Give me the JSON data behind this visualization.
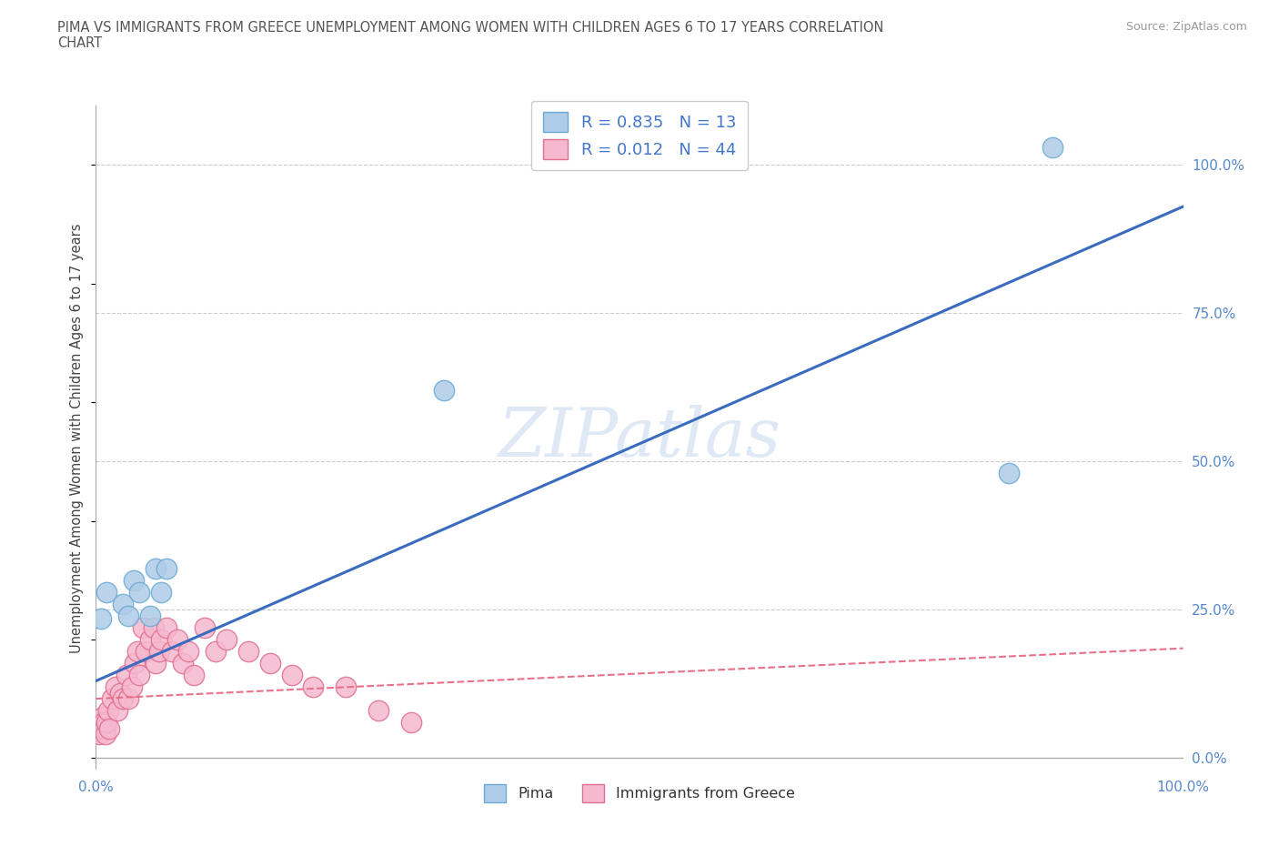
{
  "title_line1": "PIMA VS IMMIGRANTS FROM GREECE UNEMPLOYMENT AMONG WOMEN WITH CHILDREN AGES 6 TO 17 YEARS CORRELATION",
  "title_line2": "CHART",
  "source": "Source: ZipAtlas.com",
  "ylabel": "Unemployment Among Women with Children Ages 6 to 17 years",
  "watermark": "ZIPatlas",
  "pima_color": "#aecce8",
  "pima_edge_color": "#6aaad4",
  "greece_color": "#f5b8cf",
  "greece_edge_color": "#e07090",
  "pima_line_color": "#3a6bbf",
  "greece_line_color": "#e8708a",
  "pima_R": 0.835,
  "pima_N": 13,
  "greece_R": 0.012,
  "greece_N": 44,
  "legend_pima_label": "Pima",
  "legend_greece_label": "Immigrants from Greece",
  "pima_line_x0": 0.0,
  "pima_line_y0": 0.13,
  "pima_line_x1": 1.0,
  "pima_line_y1": 0.93,
  "greece_line_x0": 0.0,
  "greece_line_y0": 0.1,
  "greece_line_x1": 1.0,
  "greece_line_y1": 0.185,
  "pima_points_x": [
    0.005,
    0.01,
    0.025,
    0.03,
    0.035,
    0.04,
    0.05,
    0.055,
    0.06,
    0.065,
    0.32,
    0.84,
    0.88
  ],
  "pima_points_y": [
    0.235,
    0.28,
    0.26,
    0.24,
    0.3,
    0.28,
    0.24,
    0.32,
    0.28,
    0.32,
    0.62,
    0.48,
    1.03
  ],
  "greece_points_x": [
    0.003,
    0.004,
    0.005,
    0.006,
    0.007,
    0.008,
    0.009,
    0.01,
    0.011,
    0.012,
    0.015,
    0.018,
    0.02,
    0.022,
    0.025,
    0.028,
    0.03,
    0.033,
    0.036,
    0.038,
    0.04,
    0.043,
    0.046,
    0.05,
    0.053,
    0.055,
    0.058,
    0.06,
    0.065,
    0.07,
    0.075,
    0.08,
    0.085,
    0.09,
    0.1,
    0.11,
    0.12,
    0.14,
    0.16,
    0.18,
    0.2,
    0.23,
    0.26,
    0.29
  ],
  "greece_points_y": [
    0.04,
    0.06,
    0.05,
    0.07,
    0.06,
    0.05,
    0.04,
    0.06,
    0.08,
    0.05,
    0.1,
    0.12,
    0.08,
    0.11,
    0.1,
    0.14,
    0.1,
    0.12,
    0.16,
    0.18,
    0.14,
    0.22,
    0.18,
    0.2,
    0.22,
    0.16,
    0.18,
    0.2,
    0.22,
    0.18,
    0.2,
    0.16,
    0.18,
    0.14,
    0.22,
    0.18,
    0.2,
    0.18,
    0.16,
    0.14,
    0.12,
    0.12,
    0.08,
    0.06
  ],
  "xlim": [
    0.0,
    1.0
  ],
  "ylim": [
    -0.02,
    1.1
  ],
  "yticks": [
    0.0,
    0.25,
    0.5,
    0.75,
    1.0
  ],
  "ytick_labels": [
    "0.0%",
    "25.0%",
    "50.0%",
    "75.0%",
    "100.0%"
  ],
  "xticks": [
    0.0,
    0.25,
    0.5,
    0.75,
    1.0
  ],
  "background_color": "#ffffff",
  "grid_color": "#cccccc",
  "title_color": "#555555",
  "tick_label_color": "#5588cc"
}
